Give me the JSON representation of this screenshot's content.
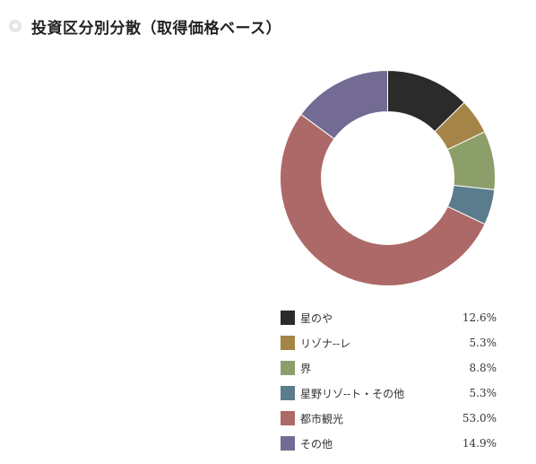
{
  "heading": {
    "title": "投資区分別分散（取得価格ベース）"
  },
  "chart_data": {
    "type": "pie",
    "title": "投資区分別分散（取得価格ベース）",
    "slices": [
      {
        "label": "星のや",
        "value": 12.6,
        "value_text": "12.6%",
        "color": "#2b2b2b"
      },
      {
        "label": "リゾナ--レ",
        "value": 5.3,
        "value_text": "5.3%",
        "color": "#a58447"
      },
      {
        "label": "界",
        "value": 8.8,
        "value_text": "8.8%",
        "color": "#8c9f6a"
      },
      {
        "label": "星野リゾ--ト・その他",
        "value": 5.3,
        "value_text": "5.3%",
        "color": "#5b7c8c"
      },
      {
        "label": "都市観光",
        "value": 53.0,
        "value_text": "53.0%",
        "color": "#ad6967"
      },
      {
        "label": "その他",
        "value": 14.9,
        "value_text": "14.9%",
        "color": "#736b93"
      }
    ]
  }
}
